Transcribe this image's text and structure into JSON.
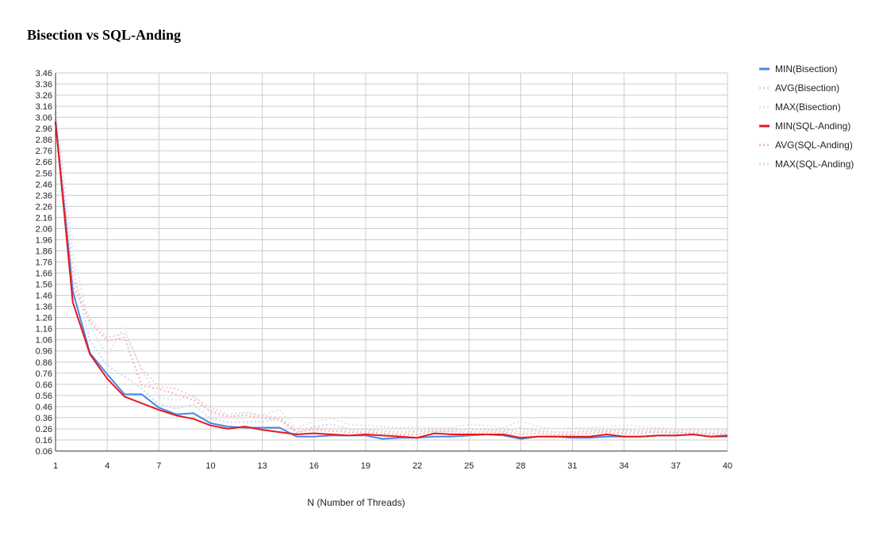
{
  "chart_data": {
    "type": "line",
    "title": "Bisection vs SQL-Anding",
    "xlabel": "N (Number of Threads)",
    "ylabel": "",
    "xlim": [
      1,
      40
    ],
    "ylim": [
      0.06,
      3.46
    ],
    "xticks": [
      1,
      4,
      7,
      10,
      13,
      16,
      19,
      22,
      25,
      28,
      31,
      34,
      37,
      40
    ],
    "yticks": [
      0.06,
      0.16,
      0.26,
      0.36,
      0.46,
      0.56,
      0.66,
      0.76,
      0.86,
      0.96,
      1.06,
      1.16,
      1.26,
      1.36,
      1.46,
      1.56,
      1.66,
      1.76,
      1.86,
      1.96,
      2.06,
      2.16,
      2.26,
      2.36,
      2.46,
      2.56,
      2.66,
      2.76,
      2.86,
      2.96,
      3.06,
      3.16,
      3.26,
      3.36,
      3.46
    ],
    "ytick_labels": [
      "0.06",
      "0.16",
      "0.26",
      "0.36",
      "0.46",
      "0.56",
      "0.66",
      "0.76",
      "0.86",
      "0.96",
      "1.06",
      "1.16",
      "1.26",
      "1.36",
      "1.46",
      "1.56",
      "1.66",
      "1.76",
      "1.86",
      "1.96",
      "2.06",
      "2.16",
      "2.26",
      "2.36",
      "2.46",
      "2.56",
      "2.66",
      "2.76",
      "2.86",
      "2.96",
      "3.06",
      "3.16",
      "3.26",
      "3.36",
      "3.46"
    ],
    "grid": true,
    "legend_position": "right",
    "x": [
      1,
      2,
      3,
      4,
      5,
      6,
      7,
      8,
      9,
      10,
      11,
      12,
      13,
      14,
      15,
      16,
      17,
      18,
      19,
      20,
      21,
      22,
      23,
      24,
      25,
      26,
      27,
      28,
      29,
      30,
      31,
      32,
      33,
      34,
      35,
      36,
      37,
      38,
      39,
      40
    ],
    "series": [
      {
        "name": "MIN(Bisection)",
        "color": "#4a86e8",
        "style": "solid",
        "opacity": 1,
        "values": [
          3.02,
          1.5,
          0.94,
          0.75,
          0.57,
          0.57,
          0.45,
          0.39,
          0.4,
          0.31,
          0.28,
          0.27,
          0.27,
          0.27,
          0.19,
          0.19,
          0.2,
          0.2,
          0.2,
          0.17,
          0.18,
          0.18,
          0.19,
          0.19,
          0.2,
          0.21,
          0.2,
          0.17,
          0.19,
          0.19,
          0.18,
          0.18,
          0.19,
          0.19,
          0.19,
          0.2,
          0.2,
          0.21,
          0.19,
          0.19
        ]
      },
      {
        "name": "AVG(Bisection)",
        "color": "#c9d7f5",
        "style": "dotted",
        "opacity": 1,
        "values": [
          3.1,
          1.7,
          1.05,
          0.83,
          0.73,
          0.62,
          0.48,
          0.44,
          0.48,
          0.35,
          0.32,
          0.32,
          0.32,
          0.36,
          0.22,
          0.28,
          0.3,
          0.26,
          0.25,
          0.24,
          0.23,
          0.24,
          0.24,
          0.24,
          0.26,
          0.25,
          0.24,
          0.27,
          0.24,
          0.23,
          0.23,
          0.24,
          0.24,
          0.25,
          0.24,
          0.23,
          0.23,
          0.22,
          0.22,
          0.22
        ]
      },
      {
        "name": "MAX(Bisection)",
        "color": "#dbe5f8",
        "style": "dotted",
        "opacity": 1,
        "values": [
          3.18,
          1.85,
          1.18,
          0.92,
          1.18,
          0.78,
          0.54,
          0.52,
          0.56,
          0.4,
          0.36,
          0.4,
          0.38,
          0.43,
          0.26,
          0.33,
          0.35,
          0.3,
          0.29,
          0.28,
          0.27,
          0.28,
          0.27,
          0.27,
          0.3,
          0.29,
          0.27,
          0.33,
          0.28,
          0.26,
          0.27,
          0.27,
          0.28,
          0.29,
          0.28,
          0.27,
          0.26,
          0.25,
          0.25,
          0.25
        ]
      },
      {
        "name": "MIN(SQL-Anding)",
        "color": "#e31a1c",
        "style": "solid",
        "opacity": 1,
        "values": [
          3.02,
          1.4,
          0.93,
          0.71,
          0.55,
          0.49,
          0.43,
          0.38,
          0.35,
          0.29,
          0.26,
          0.28,
          0.25,
          0.23,
          0.21,
          0.22,
          0.21,
          0.2,
          0.21,
          0.2,
          0.19,
          0.18,
          0.22,
          0.21,
          0.21,
          0.21,
          0.21,
          0.18,
          0.19,
          0.19,
          0.19,
          0.19,
          0.21,
          0.19,
          0.19,
          0.2,
          0.2,
          0.21,
          0.19,
          0.2
        ]
      },
      {
        "name": "AVG(SQL-Anding)",
        "color": "#f3b6b6",
        "style": "dotted",
        "opacity": 1,
        "values": [
          3.05,
          1.55,
          1.22,
          1.05,
          1.08,
          0.65,
          0.62,
          0.57,
          0.52,
          0.42,
          0.37,
          0.38,
          0.36,
          0.34,
          0.23,
          0.25,
          0.24,
          0.23,
          0.23,
          0.22,
          0.21,
          0.21,
          0.24,
          0.23,
          0.23,
          0.23,
          0.23,
          0.21,
          0.22,
          0.21,
          0.21,
          0.22,
          0.23,
          0.22,
          0.22,
          0.23,
          0.22,
          0.23,
          0.21,
          0.22
        ]
      },
      {
        "name": "MAX(SQL-Anding)",
        "color": "#f7cccc",
        "style": "dotted",
        "opacity": 1,
        "values": [
          3.1,
          1.6,
          1.25,
          1.08,
          1.12,
          0.8,
          0.64,
          0.62,
          0.55,
          0.45,
          0.39,
          0.41,
          0.38,
          0.36,
          0.25,
          0.27,
          0.26,
          0.25,
          0.25,
          0.24,
          0.23,
          0.23,
          0.26,
          0.25,
          0.25,
          0.25,
          0.25,
          0.23,
          0.24,
          0.23,
          0.23,
          0.24,
          0.25,
          0.24,
          0.24,
          0.25,
          0.24,
          0.25,
          0.23,
          0.24
        ]
      }
    ]
  }
}
